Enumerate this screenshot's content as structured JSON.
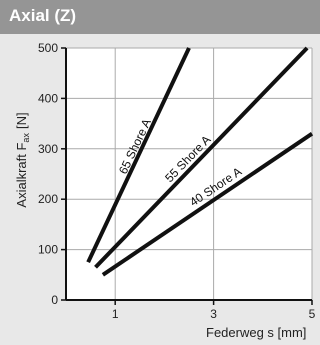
{
  "header": {
    "title": "Axial (Z)"
  },
  "chart_data": {
    "type": "line",
    "xlabel": "Federweg s [mm]",
    "ylabel": "Axialkraft F",
    "ylabel_sub": "ax",
    "ylabel_unit": "[N]",
    "xlim": [
      0,
      5
    ],
    "ylim": [
      0,
      500
    ],
    "xticks": [
      1,
      3,
      5
    ],
    "yticks": [
      0,
      100,
      200,
      300,
      400,
      500
    ],
    "grid": true,
    "series": [
      {
        "name": "65 Shore A",
        "x": [
          0.45,
          2.5
        ],
        "y": [
          75,
          500
        ]
      },
      {
        "name": "55 Shore A",
        "x": [
          0.6,
          4.9
        ],
        "y": [
          65,
          500
        ]
      },
      {
        "name": "40 Shore A",
        "x": [
          0.75,
          5.0
        ],
        "y": [
          50,
          330
        ]
      }
    ],
    "colors": {
      "line": "#111111",
      "background": "#ffffff",
      "grid": "#aaaaaa"
    }
  }
}
